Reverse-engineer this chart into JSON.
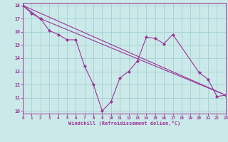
{
  "line_zigzag": {
    "x": [
      0,
      1,
      2,
      3,
      4,
      5,
      6,
      7,
      8,
      9,
      10,
      11,
      12,
      13,
      14,
      15,
      16,
      17,
      20,
      21,
      22,
      23
    ],
    "y": [
      18,
      17.4,
      17.0,
      16.1,
      15.8,
      15.4,
      15.4,
      13.4,
      12.0,
      10.0,
      10.7,
      12.5,
      13.0,
      13.8,
      15.6,
      15.5,
      15.1,
      15.8,
      12.9,
      12.4,
      11.1,
      11.2
    ]
  },
  "line_diag1": {
    "x": [
      0,
      2,
      23
    ],
    "y": [
      18,
      17.0,
      11.2
    ]
  },
  "line_diag2": {
    "x": [
      0,
      23
    ],
    "y": [
      18,
      11.2
    ]
  },
  "background_color": "#cce9e9",
  "grid_color": "#99cccc",
  "line_color": "#993399",
  "spine_color": "#993399",
  "tick_color": "#993399",
  "label_color": "#993399",
  "xlim": [
    0,
    23
  ],
  "ylim": [
    9.8,
    18.2
  ],
  "xlabel": "Windchill (Refroidissement éolien,°C)",
  "xticks": [
    0,
    1,
    2,
    3,
    4,
    5,
    6,
    7,
    8,
    9,
    10,
    11,
    12,
    13,
    14,
    15,
    16,
    17,
    18,
    19,
    20,
    21,
    22,
    23
  ],
  "yticks": [
    10,
    11,
    12,
    13,
    14,
    15,
    16,
    17,
    18
  ],
  "marker": "D",
  "markersize": 2.0,
  "linewidth": 0.8
}
